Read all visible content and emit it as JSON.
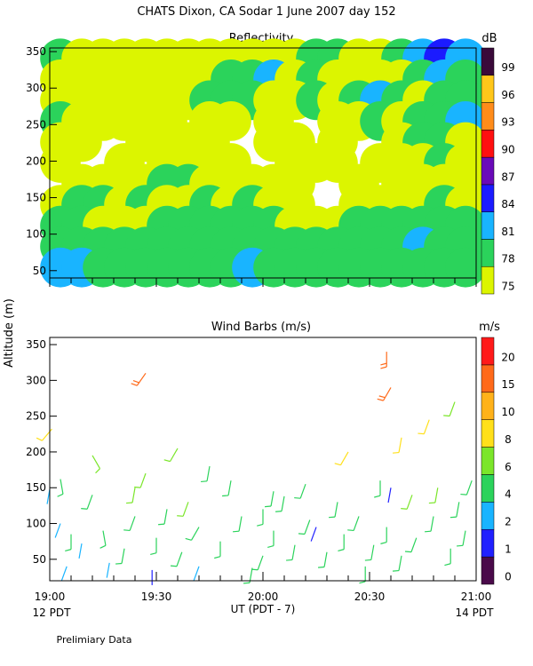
{
  "page": {
    "title": "CHATS Dixon, CA  Sodar    1 June 2007  day 152",
    "ylabel": "Altitude (m)",
    "xlabel": "UT  (PDT - 7)",
    "left_note": "12 PDT",
    "right_note": "14 PDT",
    "footer": "Prelimiary Data"
  },
  "chart_data": [
    {
      "type": "heatmap",
      "title": "Reflectivity",
      "colorbar_unit": "dB",
      "ylim": [
        40,
        355
      ],
      "yticks": [
        "50",
        "100",
        "150",
        "200",
        "250",
        "300",
        "350"
      ],
      "colorbar_levels": [
        "75",
        "78",
        "81",
        "84",
        "87",
        "90",
        "93",
        "96",
        "99"
      ],
      "colorbar_colors": [
        "#dcf500",
        "#2bd35b",
        "#19b4ff",
        "#1b1bff",
        "#6a0ab8",
        "#ff1010",
        "#ff8c1a",
        "#ffc71a",
        "#3a0a3a"
      ],
      "grid_rows_altitude": [
        350,
        320,
        290,
        260,
        230,
        200,
        170,
        140,
        110,
        80,
        50
      ],
      "grid": [
        [
          1,
          0,
          0,
          0,
          0,
          0,
          0,
          0,
          0,
          0,
          0,
          0,
          1,
          1,
          0,
          0,
          1,
          2,
          3,
          2
        ],
        [
          0,
          0,
          0,
          0,
          0,
          0,
          0,
          0,
          1,
          1,
          2,
          0,
          1,
          0,
          0,
          0,
          0,
          1,
          2,
          1
        ],
        [
          0,
          0,
          0,
          0,
          0,
          0,
          0,
          1,
          1,
          1,
          0,
          0,
          1,
          0,
          1,
          2,
          1,
          0,
          1,
          1
        ],
        [
          1,
          0,
          0,
          0,
          0,
          0,
          -1,
          0,
          0,
          -1,
          0,
          -1,
          -1,
          0,
          0,
          1,
          0,
          1,
          1,
          2
        ],
        [
          0,
          0,
          -1,
          -1,
          0,
          0,
          0,
          0,
          -1,
          -1,
          0,
          0,
          -1,
          0,
          -1,
          -1,
          0,
          1,
          1,
          0
        ],
        [
          0,
          -1,
          -1,
          0,
          -1,
          0,
          0,
          0,
          0,
          -1,
          -1,
          0,
          0,
          0,
          -1,
          0,
          0,
          0,
          1,
          0
        ],
        [
          -1,
          0,
          0,
          0,
          0,
          1,
          1,
          0,
          0,
          0,
          0,
          0,
          -1,
          -1,
          0,
          -1,
          0,
          0,
          0,
          0
        ],
        [
          0,
          1,
          1,
          0,
          1,
          0,
          0,
          1,
          0,
          1,
          0,
          0,
          -1,
          -1,
          0,
          0,
          0,
          0,
          1,
          0
        ],
        [
          1,
          1,
          0,
          0,
          0,
          1,
          1,
          1,
          1,
          1,
          1,
          0,
          0,
          0,
          1,
          1,
          1,
          1,
          1,
          1
        ],
        [
          1,
          1,
          1,
          1,
          1,
          1,
          1,
          1,
          1,
          1,
          1,
          1,
          1,
          1,
          1,
          1,
          1,
          2,
          1,
          1
        ],
        [
          2,
          2,
          1,
          1,
          1,
          1,
          1,
          1,
          1,
          2,
          1,
          1,
          1,
          1,
          1,
          1,
          1,
          1,
          1,
          1
        ]
      ]
    },
    {
      "type": "scatter",
      "title": "Wind Barbs (m/s)",
      "colorbar_unit": "m/s",
      "xlim": [
        19.0,
        21.0
      ],
      "xticks": [
        "19:00",
        "19:30",
        "20:00",
        "20:30",
        "21:00"
      ],
      "ylim": [
        20,
        360
      ],
      "yticks": [
        "50",
        "100",
        "150",
        "200",
        "250",
        "300",
        "350"
      ],
      "colorbar_levels": [
        "0",
        "1",
        "2",
        "4",
        "6",
        "8",
        "10",
        "15",
        "20"
      ],
      "colorbar_colors": [
        "#4a0a4a",
        "#2020ff",
        "#19b4ff",
        "#2bd35b",
        "#7be62a",
        "#ffe01a",
        "#ffb21a",
        "#ff6a1a",
        "#ff1a1a"
      ],
      "barbs": [
        [
          19.0,
          148,
          190,
          2,
          1
        ],
        [
          19.05,
          162,
          170,
          5,
          1
        ],
        [
          19.2,
          195,
          150,
          6,
          1
        ],
        [
          19.45,
          170,
          200,
          6,
          1
        ],
        [
          19.6,
          205,
          210,
          6,
          1
        ],
        [
          19.75,
          180,
          190,
          5,
          1
        ],
        [
          20.0,
          120,
          180,
          5,
          1
        ],
        [
          20.1,
          138,
          190,
          4,
          1
        ],
        [
          19.01,
          232,
          220,
          8,
          1
        ],
        [
          19.45,
          310,
          215,
          15,
          1
        ],
        [
          20.58,
          340,
          180,
          15,
          1
        ],
        [
          20.4,
          200,
          210,
          9,
          1
        ],
        [
          20.6,
          290,
          210,
          15,
          1
        ],
        [
          20.78,
          245,
          200,
          8,
          1
        ],
        [
          20.9,
          270,
          200,
          6,
          1
        ],
        [
          20.65,
          220,
          190,
          8,
          1
        ],
        [
          19.05,
          100,
          200,
          3,
          1
        ],
        [
          19.1,
          85,
          180,
          4,
          1
        ],
        [
          19.15,
          72,
          190,
          3,
          1
        ],
        [
          19.25,
          90,
          170,
          4,
          1
        ],
        [
          19.35,
          65,
          190,
          4,
          1
        ],
        [
          19.4,
          110,
          200,
          5,
          1
        ],
        [
          19.5,
          80,
          180,
          4,
          1
        ],
        [
          19.55,
          120,
          190,
          5,
          1
        ],
        [
          19.62,
          60,
          200,
          4,
          1
        ],
        [
          19.7,
          95,
          210,
          5,
          1
        ],
        [
          19.8,
          75,
          180,
          4,
          1
        ],
        [
          19.9,
          110,
          190,
          5,
          1
        ],
        [
          20.0,
          55,
          200,
          4,
          1
        ],
        [
          20.05,
          90,
          180,
          4,
          1
        ],
        [
          20.15,
          70,
          190,
          5,
          1
        ],
        [
          20.22,
          105,
          200,
          4,
          1
        ],
        [
          20.3,
          60,
          190,
          4,
          1
        ],
        [
          20.38,
          85,
          180,
          4,
          1
        ],
        [
          20.45,
          110,
          200,
          5,
          1
        ],
        [
          20.52,
          70,
          190,
          4,
          1
        ],
        [
          20.58,
          95,
          180,
          4,
          1
        ],
        [
          20.65,
          55,
          190,
          4,
          1
        ],
        [
          20.72,
          80,
          200,
          5,
          1
        ],
        [
          20.8,
          110,
          190,
          4,
          1
        ],
        [
          20.88,
          65,
          180,
          4,
          1
        ],
        [
          20.95,
          90,
          190,
          5,
          1
        ],
        [
          19.08,
          40,
          200,
          2,
          1
        ],
        [
          19.28,
          45,
          190,
          3,
          1
        ],
        [
          19.48,
          35,
          180,
          1,
          1
        ],
        [
          19.7,
          40,
          200,
          3,
          1
        ],
        [
          19.95,
          38,
          190,
          4,
          1
        ],
        [
          20.25,
          95,
          200,
          1,
          1
        ],
        [
          20.6,
          150,
          190,
          1,
          1
        ],
        [
          20.48,
          40,
          180,
          4,
          1
        ],
        [
          20.7,
          140,
          200,
          6,
          1
        ],
        [
          20.92,
          130,
          190,
          5,
          1
        ],
        [
          19.2,
          140,
          200,
          5,
          1
        ],
        [
          19.4,
          150,
          190,
          6,
          1
        ],
        [
          19.65,
          130,
          200,
          6,
          1
        ],
        [
          19.85,
          160,
          190,
          5,
          1
        ],
        [
          20.05,
          145,
          190,
          5,
          1
        ],
        [
          20.2,
          155,
          200,
          4,
          1
        ],
        [
          20.35,
          130,
          190,
          5,
          1
        ],
        [
          20.55,
          160,
          180,
          4,
          1
        ],
        [
          20.82,
          150,
          190,
          6,
          1
        ],
        [
          20.98,
          160,
          200,
          5,
          1
        ]
      ]
    }
  ]
}
